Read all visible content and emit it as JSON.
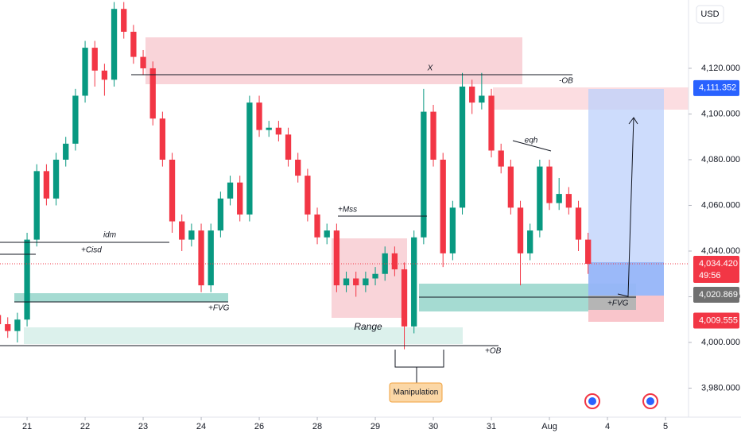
{
  "chart_data": {
    "type": "candlestick",
    "currency": "USD",
    "up_color": "#089981",
    "down_color": "#f23645",
    "open": [
      4012,
      4008,
      4005,
      4010,
      4045,
      4075,
      4063,
      4080,
      4087,
      4108,
      4129,
      4119,
      4115,
      4146,
      4136,
      4125,
      4120,
      4098,
      4080,
      4053,
      4045,
      4049,
      4025,
      4049,
      4063,
      4070,
      4056,
      4105,
      4093,
      4094,
      4091,
      4080,
      4073,
      4056,
      4046,
      4049,
      4025,
      4028,
      4025,
      4028,
      4030,
      4039,
      4032,
      4007,
      4046,
      4101,
      4080,
      4039,
      4059,
      4112,
      4105,
      4108,
      4084,
      4077,
      4059,
      4039,
      4049,
      4077,
      4061,
      4065,
      4059,
      4045
    ],
    "high": [
      4015,
      4011,
      4013,
      4048,
      4078,
      4078,
      4083,
      4090,
      4111,
      4132,
      4132,
      4122,
      4149,
      4149,
      4139,
      4128,
      4123,
      4101,
      4083,
      4056,
      4052,
      4052,
      4052,
      4066,
      4073,
      4073,
      4108,
      4108,
      4097,
      4097,
      4094,
      4083,
      4076,
      4059,
      4052,
      4052,
      4031,
      4031,
      4031,
      4033,
      4042,
      4042,
      4035,
      4049,
      4111,
      4104,
      4083,
      4062,
      4118,
      4115,
      4118,
      4111,
      4087,
      4080,
      4062,
      4052,
      4080,
      4080,
      4072,
      4068,
      4062,
      4048
    ],
    "low": [
      4005,
      4002,
      4000,
      4007,
      4042,
      4060,
      4060,
      4077,
      4084,
      4105,
      4112,
      4108,
      4112,
      4133,
      4122,
      4117,
      4095,
      4077,
      4048,
      4040,
      4042,
      4022,
      4022,
      4046,
      4060,
      4053,
      4053,
      4090,
      4090,
      4088,
      4077,
      4070,
      4053,
      4043,
      4043,
      4022,
      4022,
      4020,
      4022,
      4025,
      4027,
      4029,
      3997,
      4004,
      4043,
      4077,
      4033,
      4036,
      4056,
      4100,
      4102,
      4081,
      4074,
      4056,
      4025,
      4036,
      4046,
      4058,
      4058,
      4056,
      4040,
      4030
    ],
    "close": [
      4008,
      4005,
      4010,
      4045,
      4075,
      4063,
      4080,
      4087,
      4108,
      4129,
      4119,
      4115,
      4146,
      4136,
      4125,
      4120,
      4098,
      4080,
      4053,
      4045,
      4049,
      4025,
      4049,
      4063,
      4070,
      4056,
      4105,
      4093,
      4094,
      4091,
      4080,
      4073,
      4056,
      4046,
      4049,
      4025,
      4028,
      4025,
      4028,
      4030,
      4039,
      4032,
      4007,
      4046,
      4101,
      4080,
      4039,
      4059,
      4112,
      4105,
      4108,
      4084,
      4077,
      4059,
      4039,
      4049,
      4077,
      4061,
      4065,
      4059,
      4045,
      4034.42
    ],
    "xlim": [
      0.2,
      71.3
    ],
    "xticks": [
      {
        "value": 3,
        "label": "21"
      },
      {
        "value": 9,
        "label": "22"
      },
      {
        "value": 15,
        "label": "23"
      },
      {
        "value": 21,
        "label": "24"
      },
      {
        "value": 27,
        "label": "26"
      },
      {
        "value": 33,
        "label": "28"
      },
      {
        "value": 39,
        "label": "29"
      },
      {
        "value": 45,
        "label": "30"
      },
      {
        "value": 51,
        "label": "31"
      },
      {
        "value": 57,
        "label": "Aug"
      },
      {
        "value": 63,
        "label": "4"
      },
      {
        "value": 69,
        "label": "5"
      }
    ],
    "ylim": [
      3967.3,
      4149.9
    ],
    "yticks": [
      {
        "value": 3980,
        "label": "3,980.000"
      },
      {
        "value": 4000,
        "label": "4,000.000"
      },
      {
        "value": 4020,
        "label": "4,020.000"
      },
      {
        "value": 4040,
        "label": "4,040.000"
      },
      {
        "value": 4060,
        "label": "4,060.000"
      },
      {
        "value": 4080,
        "label": "4,080.000"
      },
      {
        "value": 4100,
        "label": "4,100.000"
      },
      {
        "value": 4120,
        "label": "4,120.000"
      }
    ],
    "price_tags": [
      {
        "value": 4111.352,
        "label": "4,111.352",
        "color": "#2962ff"
      },
      {
        "value": 4034.42,
        "label": "4,034.420",
        "countdown": "49:56",
        "color": "#f23645"
      },
      {
        "value": 4020.869,
        "label": "4,020.869",
        "color": "#707070"
      },
      {
        "value": 4009.555,
        "label": "4,009.555",
        "color": "#f23645"
      }
    ],
    "annotations": {
      "x": "X",
      "ob_top": "-OB",
      "eqh": "eqh",
      "mss": "+Mss",
      "idm": "idm",
      "cisd": "+Cisd",
      "fvg_left": "+FVG",
      "fvg_right": "+FVG",
      "range": "Range",
      "ob_bottom": "+OB",
      "manipulation": "Manipulation"
    }
  }
}
